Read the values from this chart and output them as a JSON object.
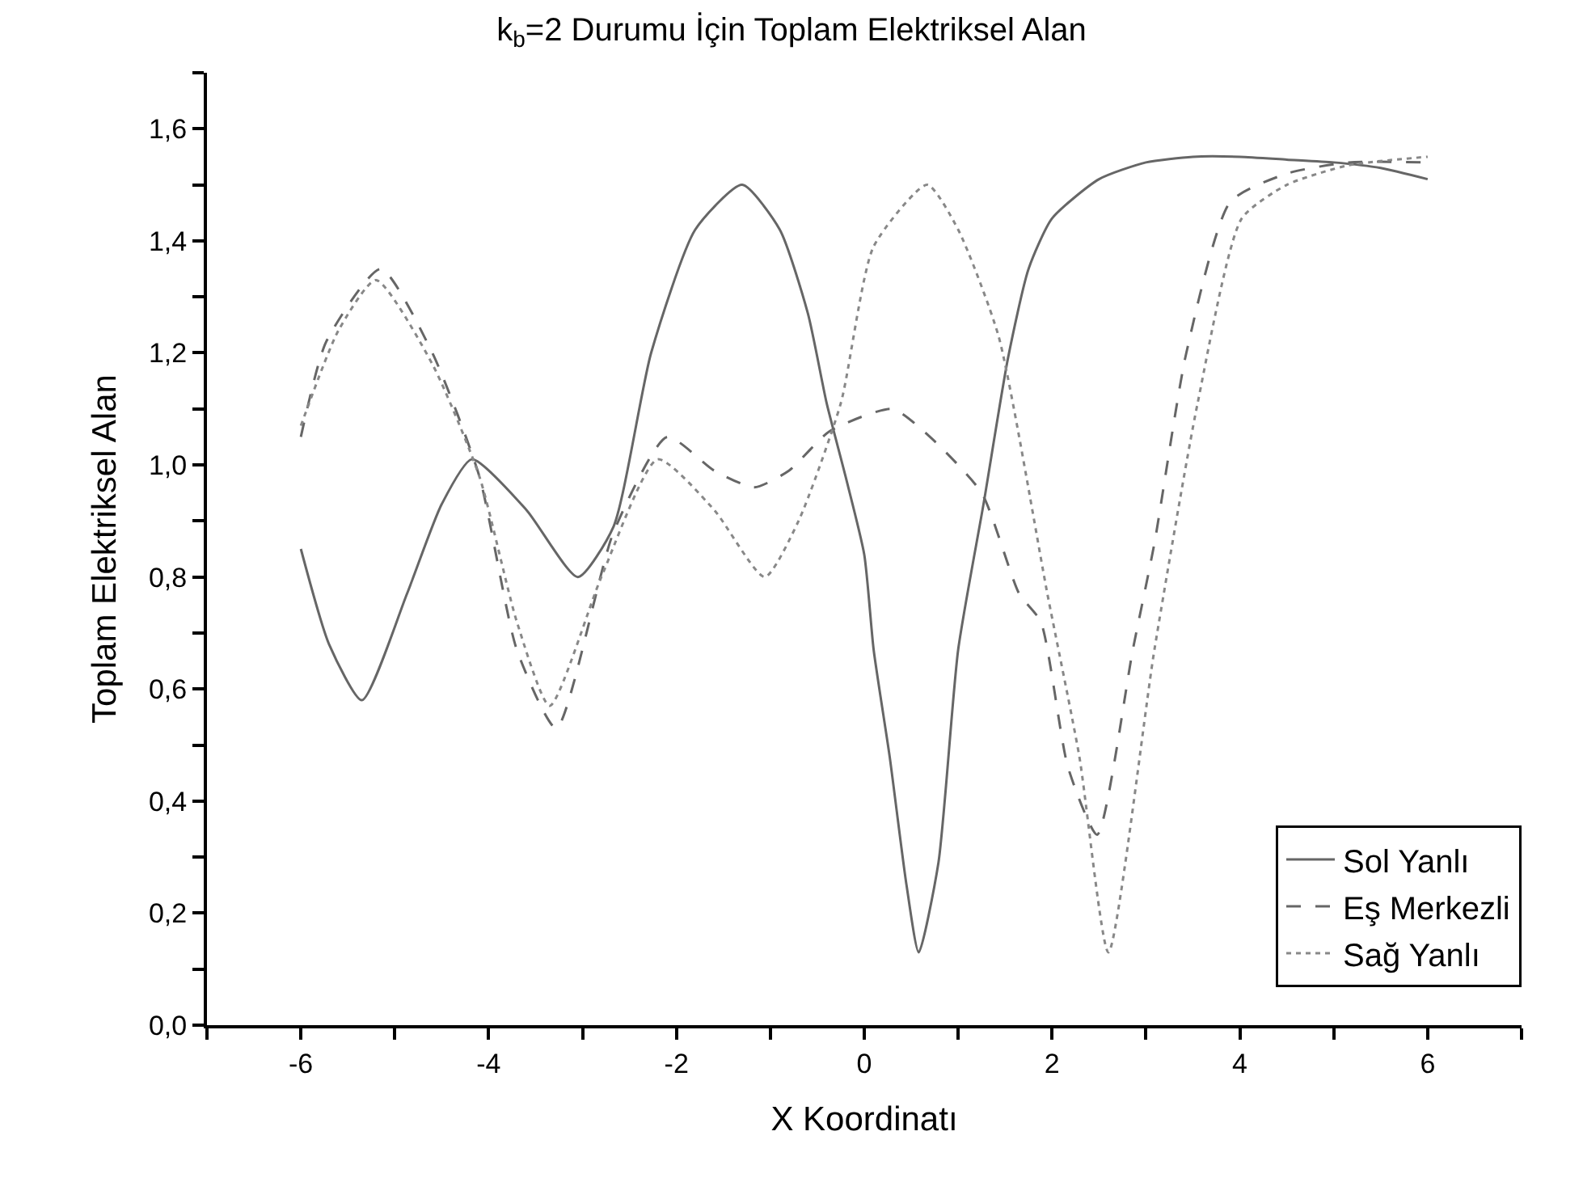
{
  "chart_data": {
    "type": "line",
    "title": "k$_{b}$=2 Durumu İçin Toplam Elektriksel Alan",
    "xlabel": "X Koordinatı",
    "ylabel": "Toplam Elektriksel Alan",
    "xlim": [
      -7,
      7
    ],
    "ylim": [
      0,
      1.7
    ],
    "xticks": [
      {
        "value": -7,
        "label": null
      },
      -6,
      {
        "value": -5,
        "label": null
      },
      -4,
      {
        "value": -3,
        "label": null
      },
      -2,
      {
        "value": -1,
        "label": null
      },
      0,
      {
        "value": 1,
        "label": null
      },
      2,
      {
        "value": 3,
        "label": null
      },
      4,
      {
        "value": 5,
        "label": null
      },
      6,
      {
        "value": 7,
        "label": null
      }
    ],
    "yticks": [
      {
        "value": 0,
        "label": "0,0"
      },
      {
        "value": 0.1,
        "label": null
      },
      {
        "value": 0.2,
        "label": "0,2"
      },
      {
        "value": 0.3,
        "label": null
      },
      {
        "value": 0.4,
        "label": "0,4"
      },
      {
        "value": 0.5,
        "label": null
      },
      {
        "value": 0.6,
        "label": "0,6"
      },
      {
        "value": 0.7,
        "label": null
      },
      {
        "value": 0.8,
        "label": "0,8"
      },
      {
        "value": 0.9,
        "label": null
      },
      {
        "value": 1.0,
        "label": "1,0"
      },
      {
        "value": 1.1,
        "label": null
      },
      {
        "value": 1.2,
        "label": "1,2"
      },
      {
        "value": 1.3,
        "label": null
      },
      {
        "value": 1.4,
        "label": "1,4"
      },
      {
        "value": 1.5,
        "label": null
      },
      {
        "value": 1.6,
        "label": "1,6"
      },
      {
        "value": 1.7,
        "label": null
      }
    ],
    "grid": false,
    "legend": "bottom right",
    "marker": "none",
    "series": [
      {
        "name": "Sol Yanlı",
        "color": "#666666",
        "line_style": "solid",
        "x": [
          -6,
          -5.7,
          -5.35,
          -4.87,
          -4.5,
          -4.18,
          -3.6,
          -3.05,
          -2.67,
          -2.27,
          -1.8,
          -1.3,
          -0.9,
          -0.6,
          -0.4,
          -0.2,
          0,
          0.1,
          0.27,
          0.45,
          0.58,
          0.79,
          1.0,
          1.27,
          1.53,
          1.75,
          2.0,
          2.5,
          3,
          3.5,
          4,
          4.5,
          5,
          5.5,
          6
        ],
        "values": [
          0.85,
          0.68,
          0.58,
          0.77,
          0.93,
          1.01,
          0.92,
          0.8,
          0.89,
          1.2,
          1.42,
          1.5,
          1.42,
          1.27,
          1.11,
          0.98,
          0.84,
          0.67,
          0.48,
          0.25,
          0.13,
          0.29,
          0.67,
          0.93,
          1.19,
          1.35,
          1.44,
          1.51,
          1.54,
          1.55,
          1.55,
          1.545,
          1.54,
          1.53,
          1.51
        ]
      },
      {
        "name": "Eş Merkezli",
        "color": "#666666",
        "line_style": "dashed",
        "x": [
          -6,
          -5.73,
          -5.15,
          -4.6,
          -4.1,
          -3.7,
          -3.28,
          -2.67,
          -2.1,
          -1.6,
          -1.17,
          -0.8,
          -0.37,
          0.3,
          0.7,
          1.25,
          1.65,
          1.88,
          2.17,
          2.48,
          2.86,
          3.09,
          3.43,
          3.9,
          4.5,
          5.16,
          5.98
        ],
        "values": [
          1.05,
          1.22,
          1.35,
          1.2,
          0.98,
          0.67,
          0.53,
          0.88,
          1.05,
          0.99,
          0.96,
          0.99,
          1.06,
          1.1,
          1.05,
          0.95,
          0.77,
          0.72,
          0.46,
          0.34,
          0.67,
          0.86,
          1.2,
          1.47,
          1.52,
          1.54,
          1.54
        ]
      },
      {
        "name": "Sağ Yanlı",
        "color": "#888888",
        "line_style": "dotted",
        "x": [
          -6,
          -5.6,
          -5.2,
          -4.6,
          -4.1,
          -3.7,
          -3.35,
          -2.8,
          -2.2,
          -1.6,
          -1.06,
          -0.7,
          -0.25,
          0.1,
          0.67,
          1.0,
          1.43,
          1.95,
          2.29,
          2.6,
          3.09,
          3.55,
          4.02,
          4.5,
          5.16,
          6
        ],
        "values": [
          1.07,
          1.24,
          1.33,
          1.18,
          0.98,
          0.72,
          0.57,
          0.8,
          1.01,
          0.92,
          0.8,
          0.9,
          1.11,
          1.39,
          1.5,
          1.42,
          1.23,
          0.77,
          0.48,
          0.13,
          0.67,
          1.11,
          1.44,
          1.5,
          1.535,
          1.55
        ]
      }
    ]
  }
}
